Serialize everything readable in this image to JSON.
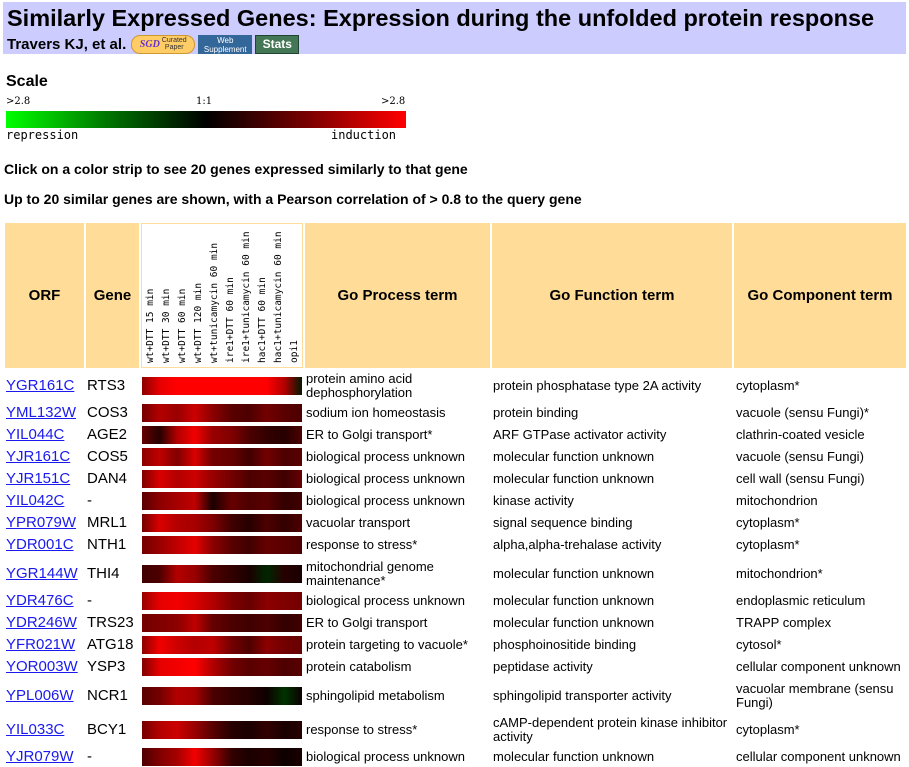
{
  "header": {
    "title": "Similarly Expressed Genes: Expression during the unfolded protein response",
    "authors": "Travers KJ, et al.",
    "badges": {
      "sgd": "SGD",
      "curated": "Curated",
      "paper": "Paper",
      "web1": "Web",
      "web2": "Supplement",
      "stats": "Stats"
    }
  },
  "scale": {
    "heading": "Scale",
    "left_label": ">2.8",
    "mid_label": "1:1",
    "right_label": ">2.8",
    "repression": "repression",
    "induction": "induction",
    "colors": {
      "repression": "#00ff00",
      "neutral": "#000000",
      "induction": "#ff0000"
    }
  },
  "instructions": {
    "line1": "Click on a color strip to see 20 genes expressed similarly to that gene",
    "line2": "Up to 20 similar genes are shown, with a Pearson correlation of > 0.8 to the query gene"
  },
  "table": {
    "headers": {
      "orf": "ORF",
      "gene": "Gene",
      "process": "Go Process term",
      "function": "Go Function term",
      "component": "Go Component term"
    },
    "conditions": [
      "wt+DTT 15 min",
      "wt+DTT 30 min",
      "wt+DTT 60 min",
      "wt+DTT 120 min",
      "wt+tunicamycin 60 min",
      "ire1+DTT 60 min",
      "ire1+tunicamycin 60 min",
      "hac1+DTT 60 min",
      "hac1+tunicamycin 60 min",
      "opi1"
    ],
    "rows": [
      {
        "orf": "YGR161C",
        "gene": "RTS3",
        "process": "protein amino acid dephosphorylation",
        "function": "protein phosphatase type 2A activity",
        "component": "cytoplasm*",
        "strip": [
          0.55,
          0.9,
          1.0,
          1.0,
          1.0,
          1.0,
          1.0,
          1.0,
          0.7,
          -0.1
        ]
      },
      {
        "orf": "YML132W",
        "gene": "COS3",
        "process": "sodium ion homeostasis",
        "function": "protein binding",
        "component": "vacuole (sensu Fungi)*",
        "strip": [
          0.45,
          0.7,
          0.6,
          0.8,
          0.55,
          0.35,
          0.3,
          0.45,
          0.35,
          0.3
        ]
      },
      {
        "orf": "YIL044C",
        "gene": "AGE2",
        "process": "ER to Golgi transport*",
        "function": "ARF GTPase activator activity",
        "component": "clathrin-coated vesicle",
        "strip": [
          0.4,
          0.15,
          0.7,
          0.95,
          0.6,
          0.5,
          0.3,
          0.2,
          0.15,
          0.3
        ]
      },
      {
        "orf": "YJR161C",
        "gene": "COS5",
        "process": "biological process unknown",
        "function": "molecular function unknown",
        "component": "vacuole (sensu Fungi)",
        "strip": [
          0.55,
          0.75,
          0.5,
          0.85,
          0.45,
          0.4,
          0.25,
          0.45,
          0.3,
          0.35
        ]
      },
      {
        "orf": "YJR151C",
        "gene": "DAN4",
        "process": "biological process unknown",
        "function": "molecular function unknown",
        "component": "cell wall (sensu Fungi)",
        "strip": [
          0.5,
          0.85,
          0.7,
          0.8,
          0.6,
          0.45,
          0.3,
          0.35,
          0.25,
          0.4
        ]
      },
      {
        "orf": "YIL042C",
        "gene": "-",
        "process": "biological process unknown",
        "function": "kinase activity",
        "component": "mitochondrion",
        "strip": [
          0.35,
          0.55,
          0.65,
          0.75,
          0.1,
          0.4,
          0.3,
          0.35,
          0.2,
          0.25
        ]
      },
      {
        "orf": "YPR079W",
        "gene": "MRL1",
        "process": "vacuolar transport",
        "function": "signal sequence binding",
        "component": "cytoplasm*",
        "strip": [
          0.45,
          0.85,
          0.7,
          0.65,
          0.5,
          0.25,
          0.15,
          0.3,
          0.2,
          0.3
        ]
      },
      {
        "orf": "YDR001C",
        "gene": "NTH1",
        "process": "response to stress*",
        "function": "alpha,alpha-trehalase activity",
        "component": "cytoplasm*",
        "strip": [
          0.45,
          0.6,
          0.75,
          0.9,
          0.55,
          0.35,
          0.25,
          0.4,
          0.35,
          0.3
        ]
      },
      {
        "orf": "YGR144W",
        "gene": "THI4",
        "process": "mitochondrial genome maintenance*",
        "function": "molecular function unknown",
        "component": "mitochondrion*",
        "strip": [
          0.25,
          0.3,
          0.7,
          0.6,
          0.3,
          0.2,
          0.1,
          -0.15,
          0.15,
          0.1
        ]
      },
      {
        "orf": "YDR476C",
        "gene": "-",
        "process": "biological process unknown",
        "function": "molecular function unknown",
        "component": "endoplasmic reticulum",
        "strip": [
          0.6,
          0.9,
          0.95,
          0.85,
          0.7,
          0.5,
          0.4,
          0.55,
          0.5,
          0.45
        ]
      },
      {
        "orf": "YDR246W",
        "gene": "TRS23",
        "process": "ER to Golgi transport",
        "function": "molecular function unknown",
        "component": "TRAPP complex",
        "strip": [
          0.45,
          0.5,
          0.55,
          0.75,
          0.4,
          0.3,
          0.25,
          0.3,
          0.2,
          0.25
        ]
      },
      {
        "orf": "YFR021W",
        "gene": "ATG18",
        "process": "protein targeting to vacuole*",
        "function": "phosphoinositide binding",
        "component": "cytosol*",
        "strip": [
          0.55,
          0.95,
          0.8,
          0.7,
          0.75,
          0.45,
          0.3,
          0.55,
          0.45,
          0.4
        ]
      },
      {
        "orf": "YOR003W",
        "gene": "YSP3",
        "process": "protein catabolism",
        "function": "peptidase activity",
        "component": "cellular component unknown",
        "strip": [
          0.5,
          0.9,
          0.95,
          1.0,
          0.7,
          0.45,
          0.35,
          0.4,
          0.3,
          0.35
        ]
      },
      {
        "orf": "YPL006W",
        "gene": "NCR1",
        "process": "sphingolipid metabolism",
        "function": "sphingolipid transporter activity",
        "component": "vacuolar membrane (sensu Fungi)",
        "strip": [
          0.35,
          0.45,
          0.7,
          0.65,
          0.3,
          0.2,
          0.15,
          0.05,
          -0.2,
          0.05
        ]
      },
      {
        "orf": "YIL033C",
        "gene": "BCY1",
        "process": "response to stress*",
        "function": "cAMP-dependent protein kinase inhibitor activity",
        "component": "cytoplasm*",
        "strip": [
          0.45,
          0.7,
          0.8,
          0.6,
          0.35,
          0.15,
          0.1,
          0.2,
          0.1,
          0.15
        ]
      },
      {
        "orf": "YJR079W",
        "gene": "-",
        "process": "biological process unknown",
        "function": "molecular function unknown",
        "component": "cellular component unknown",
        "strip": [
          0.3,
          0.5,
          0.65,
          0.95,
          0.6,
          0.2,
          0.1,
          0.15,
          0.05,
          0.1
        ]
      }
    ]
  }
}
